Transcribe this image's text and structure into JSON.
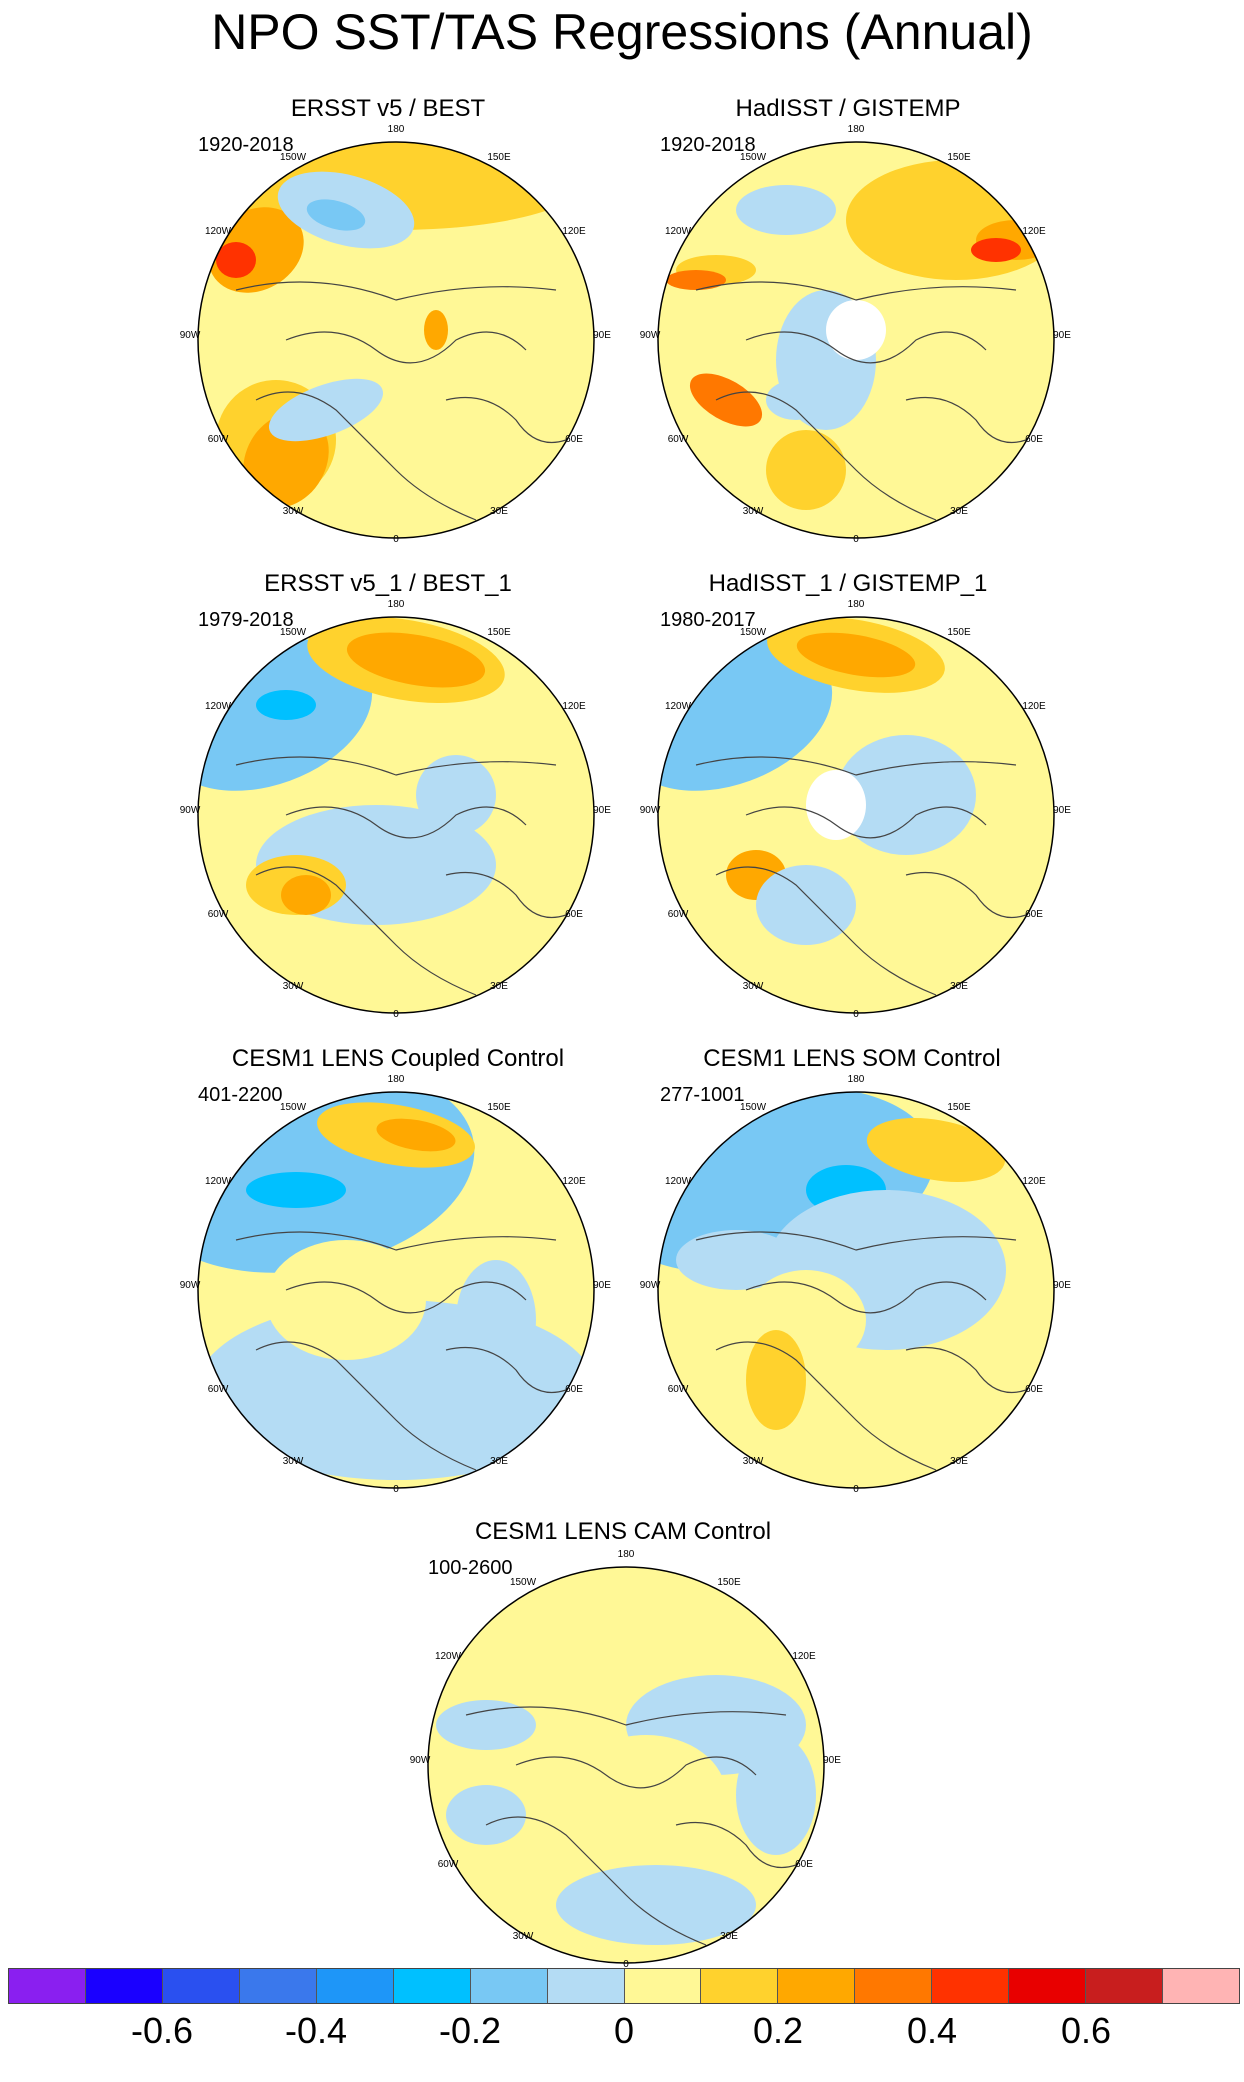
{
  "title": "NPO SST/TAS Regressions (Annual)",
  "panels": [
    {
      "id": "ersst",
      "title": "ERSST v5 / BEST",
      "period": "1920-2018",
      "pattern": "p1"
    },
    {
      "id": "hadisst",
      "title": "HadISST / GISTEMP",
      "period": "1920-2018",
      "pattern": "p2"
    },
    {
      "id": "ersst1",
      "title": "ERSST v5_1 / BEST_1",
      "period": "1979-2018",
      "pattern": "p3"
    },
    {
      "id": "hadisst1",
      "title": "HadISST_1 / GISTEMP_1",
      "period": "1980-2017",
      "pattern": "p4"
    },
    {
      "id": "coupled",
      "title": "CESM1 LENS Coupled Control",
      "period": "401-2200",
      "pattern": "p5"
    },
    {
      "id": "som",
      "title": "CESM1 LENS SOM Control",
      "period": "277-1001",
      "pattern": "p6"
    },
    {
      "id": "cam",
      "title": "CESM1 LENS CAM Control",
      "period": "100-2600",
      "pattern": "p7"
    }
  ],
  "map_labels": [
    "180",
    "150E",
    "120E",
    "90E",
    "60E",
    "30E",
    "0",
    "30W",
    "60W",
    "90W",
    "120W",
    "150W"
  ],
  "colorbar": {
    "colors": [
      "#8a1ff0",
      "#1a00ff",
      "#2a50f0",
      "#3a78ec",
      "#1e96f8",
      "#00c0ff",
      "#78c8f4",
      "#b4dcf4",
      "#fff896",
      "#ffd22d",
      "#ffa800",
      "#ff7800",
      "#ff3200",
      "#e80000",
      "#c81e1e",
      "#ffb4b4"
    ],
    "labels": [
      "-0.6",
      "-0.4",
      "-0.2",
      "0",
      "0.2",
      "0.4",
      "0.6"
    ]
  }
}
